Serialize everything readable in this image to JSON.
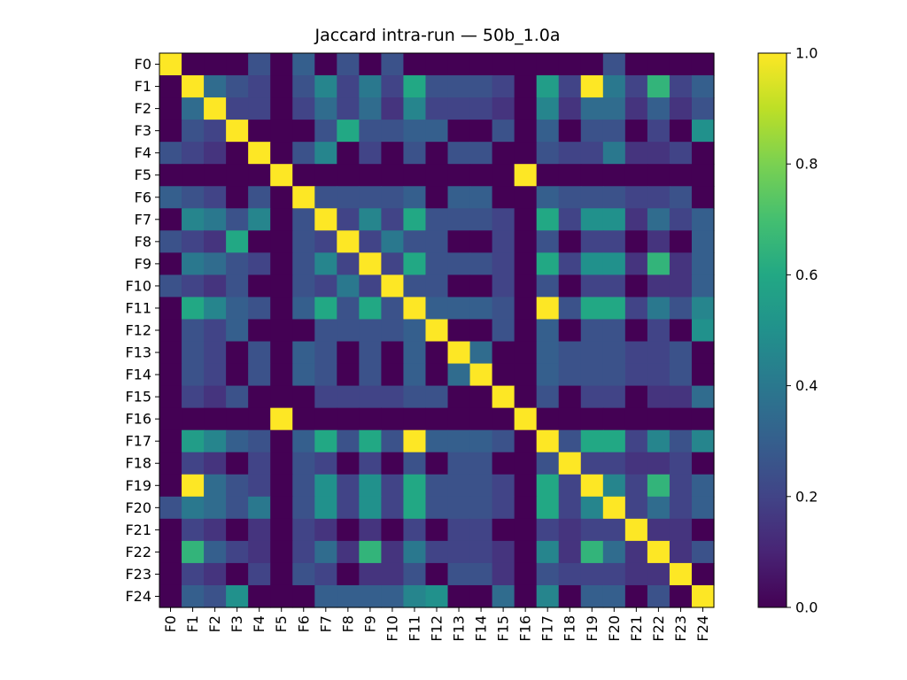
{
  "chart_data": {
    "type": "heatmap",
    "title": "Jaccard intra-run — 50b_1.0a",
    "xlabel": "",
    "ylabel": "",
    "row_labels": [
      "F0",
      "F1",
      "F2",
      "F3",
      "F4",
      "F5",
      "F6",
      "F7",
      "F8",
      "F9",
      "F10",
      "F11",
      "F12",
      "F13",
      "F14",
      "F15",
      "F16",
      "F17",
      "F18",
      "F19",
      "F20",
      "F21",
      "F22",
      "F23",
      "F24"
    ],
    "col_labels": [
      "F0",
      "F1",
      "F2",
      "F3",
      "F4",
      "F5",
      "F6",
      "F7",
      "F8",
      "F9",
      "F10",
      "F11",
      "F12",
      "F13",
      "F14",
      "F15",
      "F16",
      "F17",
      "F18",
      "F19",
      "F20",
      "F21",
      "F22",
      "F23",
      "F24"
    ],
    "colormap": "viridis",
    "vmin": 0.0,
    "vmax": 1.0,
    "colorbar": {
      "ticks": [
        0.0,
        0.2,
        0.4,
        0.6,
        0.8,
        1.0
      ],
      "tick_labels": [
        "0.0",
        "0.2",
        "0.4",
        "0.6",
        "0.8",
        "1.0"
      ]
    },
    "values": [
      [
        1.0,
        0.0,
        0.0,
        0.0,
        0.25,
        0.0,
        0.3,
        0.0,
        0.25,
        0.0,
        0.25,
        0.0,
        0.0,
        0.0,
        0.0,
        0.0,
        0.0,
        0.0,
        0.0,
        0.0,
        0.25,
        0.0,
        0.0,
        0.0,
        0.0
      ],
      [
        0.0,
        1.0,
        0.35,
        0.25,
        0.2,
        0.0,
        0.25,
        0.45,
        0.2,
        0.4,
        0.2,
        0.6,
        0.25,
        0.25,
        0.25,
        0.2,
        0.0,
        0.55,
        0.2,
        1.0,
        0.4,
        0.2,
        0.65,
        0.2,
        0.3
      ],
      [
        0.0,
        0.35,
        1.0,
        0.2,
        0.2,
        0.0,
        0.2,
        0.35,
        0.2,
        0.35,
        0.15,
        0.45,
        0.2,
        0.2,
        0.2,
        0.15,
        0.0,
        0.45,
        0.15,
        0.35,
        0.35,
        0.15,
        0.3,
        0.15,
        0.25
      ],
      [
        0.0,
        0.25,
        0.2,
        1.0,
        0.0,
        0.0,
        0.0,
        0.25,
        0.6,
        0.25,
        0.25,
        0.3,
        0.3,
        0.0,
        0.0,
        0.25,
        0.0,
        0.3,
        0.0,
        0.25,
        0.25,
        0.0,
        0.2,
        0.0,
        0.5
      ],
      [
        0.25,
        0.2,
        0.15,
        0.0,
        1.0,
        0.0,
        0.25,
        0.45,
        0.0,
        0.2,
        0.0,
        0.25,
        0.0,
        0.25,
        0.25,
        0.0,
        0.0,
        0.25,
        0.2,
        0.2,
        0.4,
        0.15,
        0.15,
        0.2,
        0.0
      ],
      [
        0.0,
        0.0,
        0.0,
        0.0,
        0.0,
        1.0,
        0.0,
        0.0,
        0.0,
        0.0,
        0.0,
        0.0,
        0.0,
        0.0,
        0.0,
        0.0,
        1.0,
        0.0,
        0.0,
        0.0,
        0.0,
        0.0,
        0.0,
        0.0,
        0.0
      ],
      [
        0.3,
        0.25,
        0.2,
        0.0,
        0.25,
        0.0,
        1.0,
        0.25,
        0.25,
        0.25,
        0.25,
        0.3,
        0.0,
        0.3,
        0.3,
        0.0,
        0.0,
        0.3,
        0.25,
        0.25,
        0.25,
        0.2,
        0.2,
        0.25,
        0.0
      ],
      [
        0.0,
        0.45,
        0.4,
        0.25,
        0.45,
        0.0,
        0.25,
        1.0,
        0.2,
        0.45,
        0.2,
        0.6,
        0.25,
        0.25,
        0.25,
        0.2,
        0.0,
        0.6,
        0.2,
        0.5,
        0.5,
        0.15,
        0.35,
        0.2,
        0.3
      ],
      [
        0.25,
        0.2,
        0.15,
        0.6,
        0.0,
        0.0,
        0.25,
        0.2,
        1.0,
        0.2,
        0.4,
        0.25,
        0.25,
        0.0,
        0.0,
        0.2,
        0.0,
        0.25,
        0.0,
        0.2,
        0.2,
        0.0,
        0.15,
        0.0,
        0.3
      ],
      [
        0.0,
        0.4,
        0.35,
        0.25,
        0.2,
        0.0,
        0.25,
        0.45,
        0.2,
        1.0,
        0.2,
        0.6,
        0.25,
        0.25,
        0.25,
        0.2,
        0.0,
        0.6,
        0.2,
        0.5,
        0.5,
        0.15,
        0.65,
        0.15,
        0.3
      ],
      [
        0.25,
        0.2,
        0.15,
        0.25,
        0.0,
        0.0,
        0.25,
        0.2,
        0.4,
        0.2,
        1.0,
        0.25,
        0.25,
        0.0,
        0.0,
        0.2,
        0.0,
        0.25,
        0.0,
        0.2,
        0.2,
        0.0,
        0.15,
        0.15,
        0.3
      ],
      [
        0.0,
        0.6,
        0.45,
        0.3,
        0.25,
        0.0,
        0.3,
        0.6,
        0.25,
        0.6,
        0.25,
        1.0,
        0.3,
        0.3,
        0.3,
        0.25,
        0.0,
        1.0,
        0.25,
        0.6,
        0.6,
        0.2,
        0.4,
        0.25,
        0.45
      ],
      [
        0.0,
        0.25,
        0.2,
        0.3,
        0.0,
        0.0,
        0.0,
        0.25,
        0.25,
        0.25,
        0.25,
        0.3,
        1.0,
        0.0,
        0.0,
        0.25,
        0.0,
        0.3,
        0.0,
        0.25,
        0.25,
        0.0,
        0.2,
        0.0,
        0.5
      ],
      [
        0.0,
        0.25,
        0.2,
        0.0,
        0.25,
        0.0,
        0.3,
        0.25,
        0.0,
        0.25,
        0.0,
        0.3,
        0.0,
        1.0,
        0.35,
        0.0,
        0.0,
        0.3,
        0.25,
        0.25,
        0.25,
        0.2,
        0.2,
        0.25,
        0.0
      ],
      [
        0.0,
        0.25,
        0.2,
        0.0,
        0.25,
        0.0,
        0.3,
        0.25,
        0.0,
        0.25,
        0.0,
        0.3,
        0.0,
        0.35,
        1.0,
        0.0,
        0.0,
        0.3,
        0.25,
        0.25,
        0.25,
        0.2,
        0.2,
        0.25,
        0.0
      ],
      [
        0.0,
        0.2,
        0.15,
        0.25,
        0.0,
        0.0,
        0.0,
        0.2,
        0.2,
        0.2,
        0.2,
        0.25,
        0.25,
        0.0,
        0.0,
        1.0,
        0.0,
        0.25,
        0.0,
        0.2,
        0.2,
        0.0,
        0.15,
        0.15,
        0.35
      ],
      [
        0.0,
        0.0,
        0.0,
        0.0,
        0.0,
        1.0,
        0.0,
        0.0,
        0.0,
        0.0,
        0.0,
        0.0,
        0.0,
        0.0,
        0.0,
        0.0,
        1.0,
        0.0,
        0.0,
        0.0,
        0.0,
        0.0,
        0.0,
        0.0,
        0.0
      ],
      [
        0.0,
        0.55,
        0.45,
        0.3,
        0.25,
        0.0,
        0.3,
        0.6,
        0.25,
        0.6,
        0.25,
        1.0,
        0.3,
        0.3,
        0.3,
        0.25,
        0.0,
        1.0,
        0.25,
        0.6,
        0.6,
        0.2,
        0.45,
        0.25,
        0.45
      ],
      [
        0.0,
        0.2,
        0.15,
        0.0,
        0.2,
        0.0,
        0.25,
        0.2,
        0.0,
        0.2,
        0.0,
        0.25,
        0.0,
        0.25,
        0.25,
        0.0,
        0.0,
        0.25,
        1.0,
        0.2,
        0.2,
        0.15,
        0.15,
        0.2,
        0.0
      ],
      [
        0.0,
        1.0,
        0.35,
        0.25,
        0.2,
        0.0,
        0.25,
        0.5,
        0.2,
        0.5,
        0.2,
        0.6,
        0.25,
        0.25,
        0.25,
        0.2,
        0.0,
        0.6,
        0.2,
        1.0,
        0.45,
        0.2,
        0.65,
        0.2,
        0.3
      ],
      [
        0.25,
        0.4,
        0.35,
        0.25,
        0.4,
        0.0,
        0.25,
        0.5,
        0.2,
        0.5,
        0.2,
        0.6,
        0.25,
        0.25,
        0.25,
        0.2,
        0.0,
        0.6,
        0.2,
        0.45,
        1.0,
        0.2,
        0.35,
        0.2,
        0.3
      ],
      [
        0.0,
        0.2,
        0.15,
        0.0,
        0.15,
        0.0,
        0.2,
        0.15,
        0.0,
        0.15,
        0.0,
        0.2,
        0.0,
        0.2,
        0.2,
        0.0,
        0.0,
        0.2,
        0.15,
        0.2,
        0.2,
        1.0,
        0.15,
        0.15,
        0.0
      ],
      [
        0.0,
        0.65,
        0.3,
        0.2,
        0.15,
        0.0,
        0.2,
        0.35,
        0.15,
        0.65,
        0.15,
        0.4,
        0.2,
        0.2,
        0.2,
        0.15,
        0.0,
        0.45,
        0.15,
        0.65,
        0.35,
        0.15,
        1.0,
        0.15,
        0.25
      ],
      [
        0.0,
        0.2,
        0.15,
        0.0,
        0.2,
        0.0,
        0.25,
        0.2,
        0.0,
        0.15,
        0.15,
        0.25,
        0.0,
        0.25,
        0.25,
        0.15,
        0.0,
        0.25,
        0.2,
        0.2,
        0.2,
        0.15,
        0.15,
        1.0,
        0.0
      ],
      [
        0.0,
        0.3,
        0.25,
        0.5,
        0.0,
        0.0,
        0.0,
        0.3,
        0.3,
        0.3,
        0.3,
        0.45,
        0.5,
        0.0,
        0.0,
        0.35,
        0.0,
        0.45,
        0.0,
        0.3,
        0.3,
        0.0,
        0.25,
        0.0,
        1.0
      ]
    ]
  }
}
